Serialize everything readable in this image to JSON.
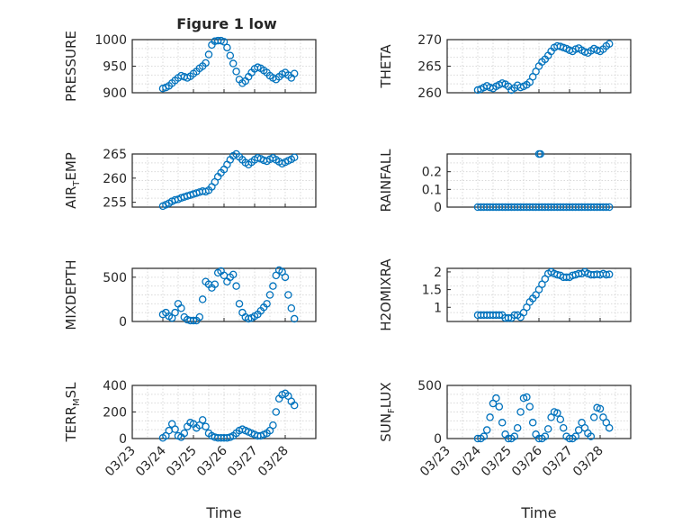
{
  "figure_title": "Figure 1 low",
  "colors": {
    "marker": "#0072bd",
    "axis": "#262626",
    "grid": "#d9d9d9"
  },
  "chart_data": [
    {
      "type": "scatter",
      "ylabel": "PRESSURE",
      "ylim": [
        900,
        1000
      ],
      "yticks": [
        "900",
        "950",
        "1000"
      ],
      "xlim": [
        -1,
        5
      ],
      "show_xticks": false,
      "grid": true,
      "x": [
        0.0,
        0.1,
        0.2,
        0.3,
        0.4,
        0.5,
        0.6,
        0.7,
        0.8,
        0.9,
        1.0,
        1.1,
        1.2,
        1.3,
        1.4,
        1.5,
        1.6,
        1.7,
        1.8,
        1.9,
        2.0,
        2.1,
        2.2,
        2.3,
        2.4,
        2.5,
        2.6,
        2.7,
        2.8,
        2.9,
        3.0,
        3.1,
        3.2,
        3.3,
        3.4,
        3.5,
        3.6,
        3.7,
        3.8,
        3.9,
        4.0,
        4.1,
        4.2,
        4.3
      ],
      "y": [
        908,
        910,
        913,
        918,
        923,
        928,
        932,
        930,
        928,
        931,
        936,
        940,
        946,
        950,
        956,
        972,
        990,
        997,
        998,
        998,
        996,
        985,
        970,
        955,
        940,
        925,
        918,
        922,
        930,
        938,
        945,
        948,
        946,
        942,
        938,
        932,
        928,
        925,
        930,
        935,
        938,
        933,
        928,
        936
      ]
    },
    {
      "type": "scatter",
      "ylabel": "THETA",
      "ylim": [
        260,
        270
      ],
      "yticks": [
        "260",
        "265",
        "270"
      ],
      "xlim": [
        -1,
        5
      ],
      "show_xticks": false,
      "grid": true,
      "x": [
        0.0,
        0.1,
        0.2,
        0.3,
        0.4,
        0.5,
        0.6,
        0.7,
        0.8,
        0.9,
        1.0,
        1.1,
        1.2,
        1.3,
        1.4,
        1.5,
        1.6,
        1.7,
        1.8,
        1.9,
        2.0,
        2.1,
        2.2,
        2.3,
        2.4,
        2.5,
        2.6,
        2.7,
        2.8,
        2.9,
        3.0,
        3.1,
        3.2,
        3.3,
        3.4,
        3.5,
        3.6,
        3.7,
        3.8,
        3.9,
        4.0,
        4.1,
        4.2,
        4.3
      ],
      "y": [
        260.5,
        260.7,
        261.0,
        261.3,
        261.0,
        260.8,
        261.2,
        261.5,
        261.8,
        261.6,
        261.2,
        260.5,
        260.9,
        261.4,
        261.0,
        261.2,
        261.5,
        262.0,
        263.0,
        264.0,
        265.0,
        265.8,
        266.3,
        267.0,
        267.8,
        268.5,
        268.8,
        268.7,
        268.5,
        268.3,
        268.0,
        267.8,
        268.2,
        268.4,
        268.0,
        267.7,
        267.5,
        267.9,
        268.3,
        268.0,
        267.8,
        268.2,
        268.8,
        269.2
      ]
    },
    {
      "type": "scatter",
      "ylabel": "AIR_TEMP",
      "ylabel_main": "AIR",
      "ylabel_sub": "T",
      "ylabel_rest": "EMP",
      "ylim": [
        254,
        265
      ],
      "yticks": [
        "255",
        "260",
        "265"
      ],
      "xlim": [
        -1,
        5
      ],
      "show_xticks": false,
      "grid": true,
      "x": [
        0.0,
        0.1,
        0.2,
        0.3,
        0.4,
        0.5,
        0.6,
        0.7,
        0.8,
        0.9,
        1.0,
        1.1,
        1.2,
        1.3,
        1.4,
        1.5,
        1.6,
        1.7,
        1.8,
        1.9,
        2.0,
        2.1,
        2.2,
        2.3,
        2.4,
        2.5,
        2.6,
        2.7,
        2.8,
        2.9,
        3.0,
        3.1,
        3.2,
        3.3,
        3.4,
        3.5,
        3.6,
        3.7,
        3.8,
        3.9,
        4.0,
        4.1,
        4.2,
        4.3
      ],
      "y": [
        254.2,
        254.5,
        254.8,
        255.2,
        255.5,
        255.6,
        255.9,
        256.1,
        256.3,
        256.5,
        256.7,
        256.9,
        257.1,
        257.3,
        257.2,
        257.5,
        258.2,
        259.2,
        260.3,
        261.1,
        261.8,
        262.8,
        263.8,
        264.6,
        265.0,
        264.4,
        263.8,
        263.2,
        262.8,
        263.3,
        263.8,
        264.2,
        264.0,
        263.7,
        263.5,
        263.9,
        264.2,
        263.8,
        263.4,
        263.0,
        263.3,
        263.6,
        263.9,
        264.3
      ]
    },
    {
      "type": "scatter",
      "ylabel": "RAINFALL",
      "ylim": [
        0,
        0.3
      ],
      "yticks": [
        "0",
        "0.1",
        "0.2"
      ],
      "ytick_values": [
        0,
        0.1,
        0.2
      ],
      "xlim": [
        -1,
        5
      ],
      "show_xticks": false,
      "grid": true,
      "x": [
        0.0,
        0.1,
        0.2,
        0.3,
        0.4,
        0.5,
        0.6,
        0.7,
        0.8,
        0.9,
        1.0,
        1.1,
        1.2,
        1.3,
        1.4,
        1.5,
        1.6,
        1.7,
        1.8,
        1.9,
        2.0,
        2.0,
        2.05,
        2.1,
        2.2,
        2.3,
        2.4,
        2.5,
        2.6,
        2.7,
        2.8,
        2.9,
        3.0,
        3.1,
        3.2,
        3.3,
        3.4,
        3.5,
        3.6,
        3.7,
        3.8,
        3.9,
        4.0,
        4.1,
        4.2,
        4.3
      ],
      "y": [
        0,
        0,
        0,
        0,
        0,
        0,
        0,
        0,
        0,
        0,
        0,
        0,
        0,
        0,
        0,
        0,
        0,
        0,
        0,
        0,
        0,
        0.3,
        0.3,
        0,
        0,
        0,
        0,
        0,
        0,
        0,
        0,
        0,
        0,
        0,
        0,
        0,
        0,
        0,
        0,
        0,
        0,
        0,
        0,
        0,
        0,
        0
      ]
    },
    {
      "type": "scatter",
      "ylabel": "MIXDEPTH",
      "ylim": [
        0,
        600
      ],
      "yticks": [
        "0",
        "500"
      ],
      "ytick_values": [
        0,
        500
      ],
      "xlim": [
        -1,
        5
      ],
      "show_xticks": false,
      "grid": true,
      "x": [
        0.0,
        0.1,
        0.2,
        0.3,
        0.4,
        0.5,
        0.6,
        0.7,
        0.8,
        0.9,
        1.0,
        1.1,
        1.2,
        1.3,
        1.4,
        1.5,
        1.6,
        1.7,
        1.8,
        1.9,
        2.0,
        2.1,
        2.2,
        2.3,
        2.4,
        2.5,
        2.6,
        2.7,
        2.8,
        2.9,
        3.0,
        3.1,
        3.2,
        3.3,
        3.4,
        3.5,
        3.6,
        3.7,
        3.8,
        3.9,
        4.0,
        4.1,
        4.2,
        4.3
      ],
      "y": [
        80,
        100,
        60,
        40,
        100,
        200,
        150,
        50,
        20,
        10,
        10,
        10,
        50,
        250,
        450,
        420,
        380,
        420,
        550,
        570,
        520,
        450,
        500,
        530,
        400,
        200,
        100,
        50,
        30,
        40,
        60,
        80,
        120,
        160,
        200,
        300,
        400,
        520,
        580,
        560,
        500,
        300,
        150,
        30
      ]
    },
    {
      "type": "scatter",
      "ylabel": "H2OMIXRA",
      "ylim": [
        0.6,
        2.1
      ],
      "yticks": [
        "1",
        "1.5",
        "2"
      ],
      "ytick_values": [
        1,
        1.5,
        2
      ],
      "xlim": [
        -1,
        5
      ],
      "show_xticks": false,
      "grid": true,
      "x": [
        0.0,
        0.1,
        0.2,
        0.3,
        0.4,
        0.5,
        0.6,
        0.7,
        0.8,
        0.9,
        1.0,
        1.1,
        1.2,
        1.3,
        1.4,
        1.5,
        1.6,
        1.7,
        1.8,
        1.9,
        2.0,
        2.1,
        2.2,
        2.3,
        2.4,
        2.5,
        2.6,
        2.7,
        2.8,
        2.9,
        3.0,
        3.1,
        3.2,
        3.3,
        3.4,
        3.5,
        3.6,
        3.7,
        3.8,
        3.9,
        4.0,
        4.1,
        4.2,
        4.3
      ],
      "y": [
        0.78,
        0.78,
        0.78,
        0.78,
        0.78,
        0.78,
        0.78,
        0.78,
        0.78,
        0.7,
        0.7,
        0.7,
        0.78,
        0.78,
        0.72,
        0.85,
        1.0,
        1.15,
        1.25,
        1.35,
        1.5,
        1.65,
        1.8,
        1.95,
        2.0,
        1.95,
        1.92,
        1.9,
        1.85,
        1.85,
        1.85,
        1.9,
        1.92,
        1.95,
        1.95,
        2.0,
        1.95,
        1.92,
        1.92,
        1.93,
        1.92,
        1.95,
        1.92,
        1.93
      ]
    },
    {
      "type": "scatter",
      "ylabel": "TERR_MSL",
      "ylabel_main": "TERR",
      "ylabel_sub": "M",
      "ylabel_rest": "SL",
      "ylim": [
        0,
        400
      ],
      "yticks": [
        "0",
        "200",
        "400"
      ],
      "ytick_values": [
        0,
        200,
        400
      ],
      "xlim": [
        -1,
        5
      ],
      "xticks": [
        "03/23",
        "03/24",
        "03/25",
        "03/26",
        "03/27",
        "03/28"
      ],
      "xtick_values": [
        -1,
        0,
        1,
        2,
        3,
        4
      ],
      "show_xticks": true,
      "xlabel": "Time",
      "grid": true,
      "x": [
        0.0,
        0.1,
        0.2,
        0.3,
        0.4,
        0.5,
        0.6,
        0.7,
        0.8,
        0.9,
        1.0,
        1.1,
        1.2,
        1.3,
        1.4,
        1.5,
        1.6,
        1.7,
        1.8,
        1.9,
        2.0,
        2.1,
        2.2,
        2.3,
        2.4,
        2.5,
        2.6,
        2.7,
        2.8,
        2.9,
        3.0,
        3.1,
        3.2,
        3.3,
        3.4,
        3.5,
        3.6,
        3.7,
        3.8,
        3.9,
        4.0,
        4.1,
        4.2,
        4.3
      ],
      "y": [
        5,
        20,
        60,
        110,
        70,
        20,
        10,
        40,
        90,
        120,
        110,
        80,
        100,
        140,
        90,
        40,
        20,
        10,
        5,
        5,
        5,
        5,
        10,
        20,
        40,
        60,
        70,
        60,
        50,
        40,
        30,
        20,
        20,
        30,
        40,
        60,
        100,
        200,
        300,
        330,
        340,
        320,
        280,
        250
      ]
    },
    {
      "type": "scatter",
      "ylabel": "SUN_FLUX",
      "ylabel_main": "SUN",
      "ylabel_sub": "F",
      "ylabel_rest": "LUX",
      "ylim": [
        0,
        500
      ],
      "yticks": [
        "0",
        "500"
      ],
      "ytick_values": [
        0,
        500
      ],
      "xlim": [
        -1,
        5
      ],
      "xticks": [
        "03/23",
        "03/24",
        "03/25",
        "03/26",
        "03/27",
        "03/28"
      ],
      "xtick_values": [
        -1,
        0,
        1,
        2,
        3,
        4
      ],
      "show_xticks": true,
      "xlabel": "Time",
      "grid": true,
      "x": [
        0.0,
        0.1,
        0.2,
        0.3,
        0.4,
        0.5,
        0.6,
        0.7,
        0.8,
        0.9,
        1.0,
        1.1,
        1.2,
        1.3,
        1.4,
        1.5,
        1.6,
        1.7,
        1.8,
        1.9,
        2.0,
        2.1,
        2.2,
        2.3,
        2.4,
        2.5,
        2.6,
        2.7,
        2.8,
        2.9,
        3.0,
        3.1,
        3.2,
        3.3,
        3.4,
        3.5,
        3.6,
        3.7,
        3.8,
        3.9,
        4.0,
        4.1,
        4.2,
        4.3
      ],
      "y": [
        0,
        0,
        20,
        80,
        200,
        330,
        380,
        300,
        150,
        40,
        0,
        0,
        20,
        100,
        250,
        380,
        390,
        300,
        150,
        40,
        0,
        0,
        20,
        90,
        200,
        250,
        240,
        180,
        100,
        20,
        0,
        0,
        20,
        80,
        150,
        100,
        50,
        20,
        200,
        290,
        280,
        200,
        150,
        100
      ]
    }
  ]
}
